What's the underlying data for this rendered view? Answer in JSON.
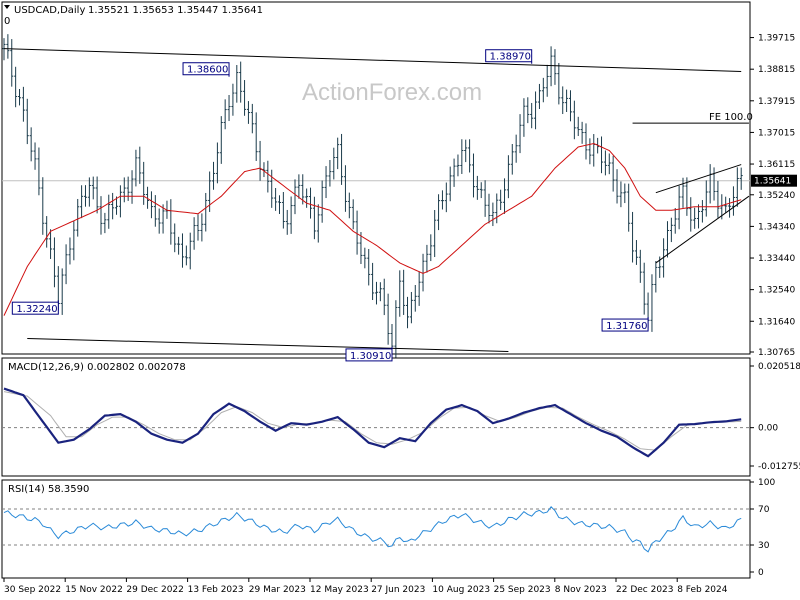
{
  "header": {
    "symbol": "USDCAD,Daily",
    "ohlc": "1.35521 1.35653 1.35447 1.35641",
    "corner": "0"
  },
  "watermark": "ActionForex.com",
  "chart_data": [
    {
      "type": "candlestick",
      "title": "USDCAD,Daily",
      "ylim": [
        1.30765,
        1.40215
      ],
      "y_ticks": [
        "1.39715",
        "1.38815",
        "1.37915",
        "1.37015",
        "1.36115",
        "1.35240",
        "1.34340",
        "1.33440",
        "1.32540",
        "1.31640",
        "1.30765"
      ],
      "x_ticks": [
        "30 Sep 2022",
        "15 Nov 2022",
        "29 Dec 2022",
        "13 Feb 2023",
        "29 Mar 2023",
        "12 May 2023",
        "27 Jun 2023",
        "10 Aug 2023",
        "25 Sep 2023",
        "8 Nov 2023",
        "22 Dec 2023",
        "8 Feb 2024"
      ],
      "last_price": "1.35641",
      "price_path": [
        [
          0,
          1.394
        ],
        [
          4,
          1.38
        ],
        [
          8,
          1.36
        ],
        [
          12,
          1.335
        ],
        [
          14,
          1.3224
        ],
        [
          18,
          1.345
        ],
        [
          22,
          1.355
        ],
        [
          26,
          1.345
        ],
        [
          30,
          1.352
        ],
        [
          34,
          1.36
        ],
        [
          38,
          1.348
        ],
        [
          42,
          1.345
        ],
        [
          46,
          1.335
        ],
        [
          50,
          1.342
        ],
        [
          54,
          1.36
        ],
        [
          58,
          1.38
        ],
        [
          60,
          1.386
        ],
        [
          64,
          1.37
        ],
        [
          68,
          1.355
        ],
        [
          72,
          1.345
        ],
        [
          76,
          1.355
        ],
        [
          80,
          1.345
        ],
        [
          84,
          1.36
        ],
        [
          86,
          1.365
        ],
        [
          90,
          1.342
        ],
        [
          94,
          1.33
        ],
        [
          98,
          1.32
        ],
        [
          100,
          1.3091
        ],
        [
          102,
          1.33
        ],
        [
          104,
          1.315
        ],
        [
          106,
          1.325
        ],
        [
          110,
          1.34
        ],
        [
          114,
          1.355
        ],
        [
          118,
          1.365
        ],
        [
          122,
          1.355
        ],
        [
          126,
          1.345
        ],
        [
          130,
          1.36
        ],
        [
          134,
          1.375
        ],
        [
          138,
          1.38
        ],
        [
          141,
          1.3897
        ],
        [
          144,
          1.38
        ],
        [
          148,
          1.37
        ],
        [
          152,
          1.365
        ],
        [
          156,
          1.36
        ],
        [
          160,
          1.35
        ],
        [
          162,
          1.338
        ],
        [
          164,
          1.33
        ],
        [
          166,
          1.3176
        ],
        [
          168,
          1.33
        ],
        [
          172,
          1.345
        ],
        [
          175,
          1.352
        ],
        [
          178,
          1.345
        ],
        [
          182,
          1.355
        ],
        [
          186,
          1.348
        ],
        [
          190,
          1.3564
        ]
      ],
      "moving_average_path": [
        [
          0,
          1.318
        ],
        [
          6,
          1.332
        ],
        [
          12,
          1.342
        ],
        [
          18,
          1.345
        ],
        [
          24,
          1.348
        ],
        [
          30,
          1.352
        ],
        [
          36,
          1.352
        ],
        [
          42,
          1.348
        ],
        [
          50,
          1.347
        ],
        [
          56,
          1.352
        ],
        [
          62,
          1.359
        ],
        [
          66,
          1.36
        ],
        [
          72,
          1.355
        ],
        [
          78,
          1.35
        ],
        [
          84,
          1.348
        ],
        [
          90,
          1.342
        ],
        [
          96,
          1.338
        ],
        [
          102,
          1.333
        ],
        [
          108,
          1.33
        ],
        [
          112,
          1.332
        ],
        [
          118,
          1.338
        ],
        [
          124,
          1.344
        ],
        [
          130,
          1.348
        ],
        [
          136,
          1.352
        ],
        [
          142,
          1.36
        ],
        [
          148,
          1.366
        ],
        [
          152,
          1.367
        ],
        [
          156,
          1.365
        ],
        [
          160,
          1.36
        ],
        [
          164,
          1.352
        ],
        [
          168,
          1.348
        ],
        [
          172,
          1.348
        ],
        [
          178,
          1.349
        ],
        [
          184,
          1.349
        ],
        [
          190,
          1.351
        ]
      ],
      "price_labels": [
        {
          "text": "1.38600",
          "x": 58,
          "y": 1.386
        },
        {
          "text": "1.38970",
          "x": 136,
          "y": 1.3897
        },
        {
          "text": "1.32240",
          "x": 14,
          "y": 1.3224
        },
        {
          "text": "1.30910",
          "x": 100,
          "y": 1.3091
        },
        {
          "text": "1.31760",
          "x": 166,
          "y": 1.3176
        }
      ],
      "annotation": {
        "text": "FE 100.0",
        "x": 192,
        "y": 1.3728
      },
      "trendlines": [
        [
          [
            0,
            1.394
          ],
          [
            190,
            1.3875
          ]
        ],
        [
          [
            6,
            1.3115
          ],
          [
            130,
            1.3078
          ]
        ],
        [
          [
            168,
            1.353
          ],
          [
            190,
            1.361
          ]
        ],
        [
          [
            168,
            1.333
          ],
          [
            192,
            1.352
          ]
        ],
        [
          [
            162,
            1.3728
          ],
          [
            192,
            1.3728
          ]
        ]
      ]
    },
    {
      "type": "line",
      "title": "MACD(12,26,9) 0.002802 0.002078",
      "ylim": [
        -0.012755,
        0.020518
      ],
      "y_ticks": [
        "0.020518",
        "0.00",
        "-0.012755"
      ],
      "series": [
        {
          "values": [
            [
              0,
              0.013
            ],
            [
              5,
              0.0108
            ],
            [
              10,
              0.002
            ],
            [
              14,
              -0.005
            ],
            [
              18,
              -0.004
            ],
            [
              22,
              -0.0005
            ],
            [
              26,
              0.004
            ],
            [
              30,
              0.0045
            ],
            [
              34,
              0.002
            ],
            [
              38,
              -0.002
            ],
            [
              42,
              -0.004
            ],
            [
              46,
              -0.005
            ],
            [
              50,
              -0.002
            ],
            [
              54,
              0.0045
            ],
            [
              58,
              0.008
            ],
            [
              62,
              0.0055
            ],
            [
              66,
              0.002
            ],
            [
              70,
              -0.001
            ],
            [
              74,
              0.0015
            ],
            [
              78,
              0.001
            ],
            [
              82,
              0.002
            ],
            [
              86,
              0.0035
            ],
            [
              90,
              -0.0005
            ],
            [
              94,
              -0.005
            ],
            [
              98,
              -0.0065
            ],
            [
              102,
              -0.0035
            ],
            [
              106,
              -0.0045
            ],
            [
              110,
              0.0015
            ],
            [
              114,
              0.006
            ],
            [
              118,
              0.0075
            ],
            [
              122,
              0.0055
            ],
            [
              126,
              0.0015
            ],
            [
              130,
              0.003
            ],
            [
              134,
              0.005
            ],
            [
              138,
              0.0065
            ],
            [
              142,
              0.0075
            ],
            [
              146,
              0.0045
            ],
            [
              150,
              0.0015
            ],
            [
              154,
              -0.001
            ],
            [
              158,
              -0.003
            ],
            [
              162,
              -0.0065
            ],
            [
              166,
              -0.0095
            ],
            [
              170,
              -0.005
            ],
            [
              174,
              0.001
            ],
            [
              178,
              0.0012
            ],
            [
              182,
              0.0018
            ],
            [
              186,
              0.0021
            ],
            [
              190,
              0.0028
            ]
          ]
        },
        {
          "values": [
            [
              0,
              0.012
            ],
            [
              6,
              0.0105
            ],
            [
              12,
              0.004
            ],
            [
              16,
              -0.003
            ],
            [
              20,
              -0.003
            ],
            [
              24,
              0.001
            ],
            [
              28,
              0.0035
            ],
            [
              32,
              0.0035
            ],
            [
              36,
              0.001
            ],
            [
              40,
              -0.002
            ],
            [
              44,
              -0.004
            ],
            [
              48,
              -0.004
            ],
            [
              52,
              0.0
            ],
            [
              56,
              0.005
            ],
            [
              60,
              0.007
            ],
            [
              64,
              0.005
            ],
            [
              68,
              0.0015
            ],
            [
              72,
              0.0
            ],
            [
              76,
              0.0012
            ],
            [
              80,
              0.0015
            ],
            [
              84,
              0.0025
            ],
            [
              88,
              0.002
            ],
            [
              92,
              -0.002
            ],
            [
              96,
              -0.005
            ],
            [
              100,
              -0.0055
            ],
            [
              104,
              -0.004
            ],
            [
              108,
              -0.0015
            ],
            [
              112,
              0.003
            ],
            [
              116,
              0.0065
            ],
            [
              120,
              0.0068
            ],
            [
              124,
              0.004
            ],
            [
              128,
              0.002
            ],
            [
              132,
              0.0035
            ],
            [
              136,
              0.0055
            ],
            [
              140,
              0.0068
            ],
            [
              144,
              0.0065
            ],
            [
              148,
              0.0035
            ],
            [
              152,
              0.001
            ],
            [
              156,
              -0.0012
            ],
            [
              160,
              -0.0038
            ],
            [
              164,
              -0.007
            ],
            [
              168,
              -0.0075
            ],
            [
              172,
              -0.003
            ],
            [
              176,
              0.0008
            ],
            [
              180,
              0.0015
            ],
            [
              184,
              0.0018
            ],
            [
              190,
              0.0021
            ]
          ]
        }
      ]
    },
    {
      "type": "line",
      "title": "RSI(14) 58.3590",
      "ylim": [
        0,
        100
      ],
      "y_ticks": [
        "100",
        "70",
        "30",
        "0"
      ],
      "series": [
        {
          "values": [
            [
              0,
              66
            ],
            [
              4,
              62
            ],
            [
              8,
              58
            ],
            [
              10,
              54
            ],
            [
              12,
              46
            ],
            [
              14,
              40
            ],
            [
              18,
              46
            ],
            [
              22,
              52
            ],
            [
              26,
              49
            ],
            [
              30,
              52
            ],
            [
              34,
              55
            ],
            [
              38,
              48
            ],
            [
              42,
              46
            ],
            [
              46,
              42
            ],
            [
              50,
              46
            ],
            [
              54,
              53
            ],
            [
              58,
              60
            ],
            [
              60,
              63
            ],
            [
              64,
              56
            ],
            [
              68,
              48
            ],
            [
              72,
              44
            ],
            [
              76,
              52
            ],
            [
              80,
              46
            ],
            [
              84,
              56
            ],
            [
              86,
              58
            ],
            [
              90,
              46
            ],
            [
              94,
              38
            ],
            [
              98,
              34
            ],
            [
              100,
              28
            ],
            [
              102,
              40
            ],
            [
              104,
              32
            ],
            [
              106,
              38
            ],
            [
              110,
              48
            ],
            [
              114,
              58
            ],
            [
              118,
              64
            ],
            [
              122,
              56
            ],
            [
              126,
              50
            ],
            [
              130,
              58
            ],
            [
              134,
              64
            ],
            [
              138,
              66
            ],
            [
              141,
              70
            ],
            [
              144,
              60
            ],
            [
              148,
              54
            ],
            [
              152,
              52
            ],
            [
              156,
              50
            ],
            [
              160,
              44
            ],
            [
              162,
              36
            ],
            [
              164,
              32
            ],
            [
              166,
              24
            ],
            [
              168,
              34
            ],
            [
              172,
              46
            ],
            [
              175,
              60
            ],
            [
              178,
              50
            ],
            [
              182,
              54
            ],
            [
              186,
              48
            ],
            [
              190,
              58
            ]
          ]
        }
      ]
    }
  ]
}
